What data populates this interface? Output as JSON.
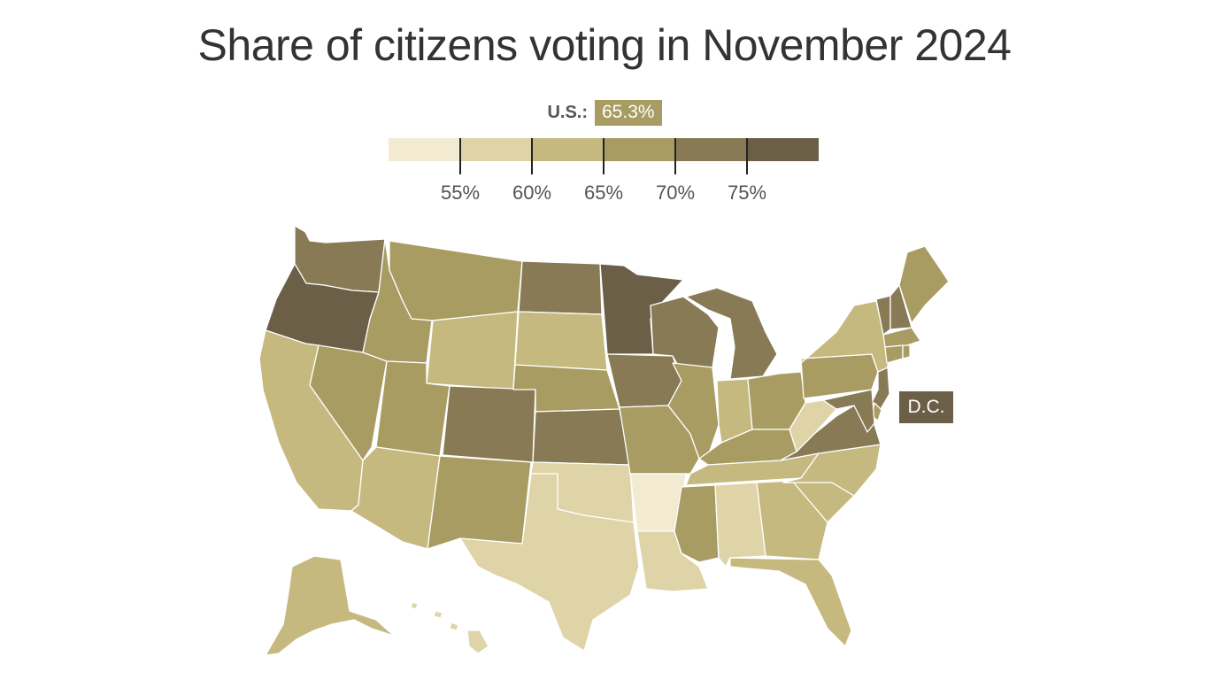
{
  "title": "Share of citizens voting in November 2024",
  "us_average": {
    "label": "U.S.:",
    "value": "65.3%"
  },
  "legend": {
    "colors": [
      "#f3ead2",
      "#dfd3a8",
      "#c6b97f",
      "#a89c62",
      "#877a55",
      "#6b5f47"
    ],
    "thresholds": [
      55,
      60,
      65,
      70,
      75
    ],
    "tick_labels": [
      "55%",
      "60%",
      "65%",
      "70%",
      "75%"
    ]
  },
  "dc_label": "D.C.",
  "chart_data": {
    "type": "choropleth",
    "title": "Share of citizens voting in November 2024",
    "us_average": 65.3,
    "legend_thresholds": [
      55,
      60,
      65,
      70,
      75
    ],
    "legend_colors": [
      "#f3ead2",
      "#dfd3a8",
      "#c6b97f",
      "#a89c62",
      "#877a55",
      "#6b5f47"
    ],
    "states": [
      {
        "state": "WA",
        "bin": 4
      },
      {
        "state": "OR",
        "bin": 5
      },
      {
        "state": "CA",
        "bin": 2
      },
      {
        "state": "NV",
        "bin": 3
      },
      {
        "state": "ID",
        "bin": 3
      },
      {
        "state": "MT",
        "bin": 3
      },
      {
        "state": "WY",
        "bin": 2
      },
      {
        "state": "UT",
        "bin": 3
      },
      {
        "state": "AZ",
        "bin": 2
      },
      {
        "state": "CO",
        "bin": 4
      },
      {
        "state": "NM",
        "bin": 3
      },
      {
        "state": "ND",
        "bin": 4
      },
      {
        "state": "SD",
        "bin": 2
      },
      {
        "state": "NE",
        "bin": 3
      },
      {
        "state": "KS",
        "bin": 4
      },
      {
        "state": "OK",
        "bin": 1
      },
      {
        "state": "TX",
        "bin": 1
      },
      {
        "state": "MN",
        "bin": 5
      },
      {
        "state": "IA",
        "bin": 4
      },
      {
        "state": "MO",
        "bin": 3
      },
      {
        "state": "AR",
        "bin": 0
      },
      {
        "state": "LA",
        "bin": 1
      },
      {
        "state": "WI",
        "bin": 4
      },
      {
        "state": "IL",
        "bin": 3
      },
      {
        "state": "MI",
        "bin": 4
      },
      {
        "state": "IN",
        "bin": 2
      },
      {
        "state": "OH",
        "bin": 3
      },
      {
        "state": "KY",
        "bin": 3
      },
      {
        "state": "TN",
        "bin": 2
      },
      {
        "state": "MS",
        "bin": 3
      },
      {
        "state": "AL",
        "bin": 1
      },
      {
        "state": "GA",
        "bin": 2
      },
      {
        "state": "FL",
        "bin": 2
      },
      {
        "state": "SC",
        "bin": 2
      },
      {
        "state": "NC",
        "bin": 2
      },
      {
        "state": "VA",
        "bin": 4
      },
      {
        "state": "WV",
        "bin": 1
      },
      {
        "state": "PA",
        "bin": 3
      },
      {
        "state": "NY",
        "bin": 2
      },
      {
        "state": "VT",
        "bin": 4
      },
      {
        "state": "NH",
        "bin": 4
      },
      {
        "state": "ME",
        "bin": 3
      },
      {
        "state": "MA",
        "bin": 3
      },
      {
        "state": "RI",
        "bin": 3
      },
      {
        "state": "CT",
        "bin": 3
      },
      {
        "state": "NJ",
        "bin": 4
      },
      {
        "state": "DE",
        "bin": 3
      },
      {
        "state": "MD",
        "bin": 4
      },
      {
        "state": "DC",
        "bin": 5
      },
      {
        "state": "AK",
        "bin": 2
      },
      {
        "state": "HI",
        "bin": 1
      }
    ]
  }
}
